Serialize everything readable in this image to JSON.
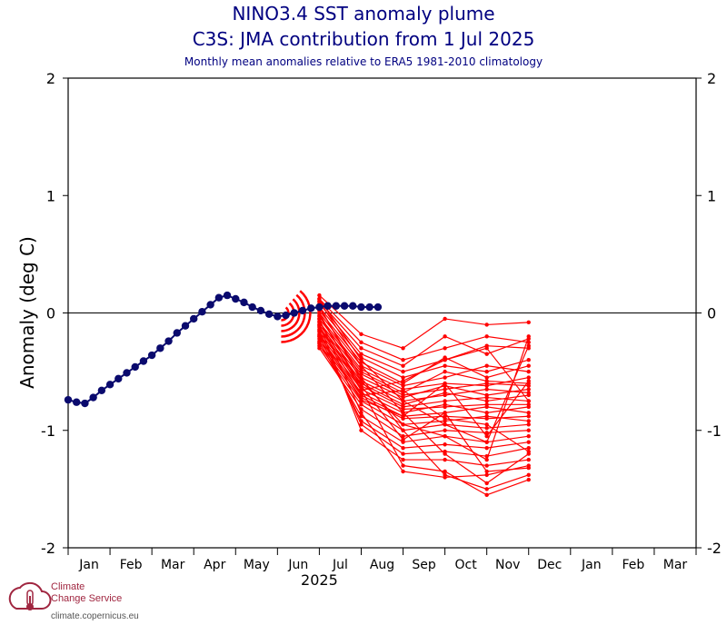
{
  "header": {
    "title_line1": "NINO3.4 SST anomaly plume",
    "title_line2": "C3S: JMA contribution from 1 Jul 2025",
    "subtitle": "Monthly mean anomalies relative to ERA5 1981-2010 climatology"
  },
  "logo": {
    "line1": "Climate",
    "line2": "Change Service",
    "url": "climate.copernicus.eu"
  },
  "colors": {
    "observed": "#0a0a6e",
    "forecast": "#ff0000",
    "axis": "#000000",
    "title": "#000080"
  },
  "chart_data": {
    "type": "line",
    "ylabel": "Anomaly (deg C)",
    "ylim": [
      -2,
      2
    ],
    "yticks": [
      2,
      1,
      0,
      -1,
      -2
    ],
    "months": [
      "Jan",
      "Feb",
      "Mar",
      "Apr",
      "May",
      "Jun",
      "Jul",
      "Aug",
      "Sep",
      "Oct",
      "Nov",
      "Dec",
      "Jan",
      "Feb",
      "Mar"
    ],
    "year_label": "2025",
    "year_label_month": "Jun",
    "zero_line": true,
    "observed": {
      "name": "observed",
      "x_start": 0.0,
      "x_step": 0.2,
      "values": [
        -0.74,
        -0.76,
        -0.77,
        -0.72,
        -0.66,
        -0.61,
        -0.56,
        -0.51,
        -0.46,
        -0.41,
        -0.36,
        -0.3,
        -0.24,
        -0.17,
        -0.11,
        -0.05,
        0.01,
        0.07,
        0.13,
        0.15,
        0.12,
        0.09,
        0.05,
        0.02,
        -0.01,
        -0.03,
        -0.02,
        0.0,
        0.02,
        0.04,
        0.05,
        0.06,
        0.06,
        0.06,
        0.06,
        0.05,
        0.05,
        0.05
      ]
    },
    "forecast": {
      "name": "ensemble",
      "x_months": [
        6,
        7,
        8,
        9,
        10,
        11
      ],
      "members": [
        [
          0.15,
          -0.18,
          -0.3,
          -0.05,
          -0.1,
          -0.08
        ],
        [
          0.12,
          -0.25,
          -0.4,
          -0.3,
          -0.2,
          -0.25
        ],
        [
          0.1,
          -0.3,
          -0.45,
          -0.2,
          -0.35,
          -0.22
        ],
        [
          0.08,
          -0.35,
          -0.5,
          -0.4,
          -0.28,
          -0.3
        ],
        [
          0.05,
          -0.38,
          -0.55,
          -0.45,
          -0.5,
          -0.4
        ],
        [
          0.02,
          -0.42,
          -0.6,
          -0.38,
          -0.55,
          -0.45
        ],
        [
          0.0,
          -0.45,
          -0.62,
          -0.55,
          -0.45,
          -0.5
        ],
        [
          -0.03,
          -0.48,
          -0.65,
          -0.6,
          -0.62,
          -0.55
        ],
        [
          -0.05,
          -0.5,
          -0.68,
          -0.5,
          -0.58,
          -0.6
        ],
        [
          -0.08,
          -0.52,
          -0.7,
          -0.65,
          -0.6,
          -0.62
        ],
        [
          -0.1,
          -0.55,
          -0.72,
          -0.62,
          -0.7,
          -0.65
        ],
        [
          -0.12,
          -0.58,
          -0.75,
          -0.7,
          -0.65,
          -0.68
        ],
        [
          -0.14,
          -0.6,
          -0.78,
          -0.68,
          -0.75,
          -0.7
        ],
        [
          -0.16,
          -0.62,
          -0.8,
          -0.75,
          -0.72,
          -0.75
        ],
        [
          -0.18,
          -0.65,
          -0.82,
          -0.8,
          -0.78,
          -0.78
        ],
        [
          -0.2,
          -0.68,
          -0.85,
          -0.78,
          -0.85,
          -0.8
        ],
        [
          -0.22,
          -0.7,
          -0.88,
          -0.85,
          -0.8,
          -0.85
        ],
        [
          -0.24,
          -0.72,
          -0.9,
          -0.88,
          -0.9,
          -0.88
        ],
        [
          -0.26,
          -0.75,
          -0.95,
          -0.92,
          -0.88,
          -0.92
        ],
        [
          -0.28,
          -0.78,
          -1.0,
          -0.95,
          -0.98,
          -0.95
        ],
        [
          -0.3,
          -0.82,
          -1.05,
          -1.0,
          -1.02,
          -1.0
        ],
        [
          -0.25,
          -0.88,
          -1.1,
          -1.05,
          -1.1,
          -1.05
        ],
        [
          -0.2,
          -0.92,
          -1.15,
          -1.12,
          -1.15,
          -1.1
        ],
        [
          -0.15,
          -0.95,
          -1.2,
          -1.18,
          -1.22,
          -1.15
        ],
        [
          -0.1,
          -1.0,
          -1.25,
          -1.25,
          -1.3,
          -1.25
        ],
        [
          -0.05,
          -0.85,
          -1.35,
          -1.4,
          -1.38,
          -1.3
        ],
        [
          0.0,
          -0.65,
          -1.3,
          -1.35,
          -1.55,
          -1.42
        ],
        [
          0.05,
          -0.55,
          -1.0,
          -1.38,
          -1.5,
          -1.38
        ],
        [
          0.1,
          -0.45,
          -0.85,
          -1.2,
          -1.45,
          -1.2
        ],
        [
          0.12,
          -0.4,
          -0.75,
          -0.95,
          -1.1,
          -0.28
        ],
        [
          0.06,
          -0.58,
          -0.95,
          -1.05,
          -1.25,
          -0.2
        ],
        [
          -0.02,
          -0.62,
          -1.08,
          -0.85,
          -1.35,
          -1.32
        ],
        [
          -0.07,
          -0.66,
          -0.58,
          -0.4,
          -0.3,
          -0.75
        ],
        [
          -0.11,
          -0.7,
          -0.66,
          -0.9,
          -0.95,
          -1.18
        ],
        [
          -0.19,
          -0.74,
          -0.88,
          -0.6,
          -1.05,
          -0.58
        ]
      ]
    }
  }
}
